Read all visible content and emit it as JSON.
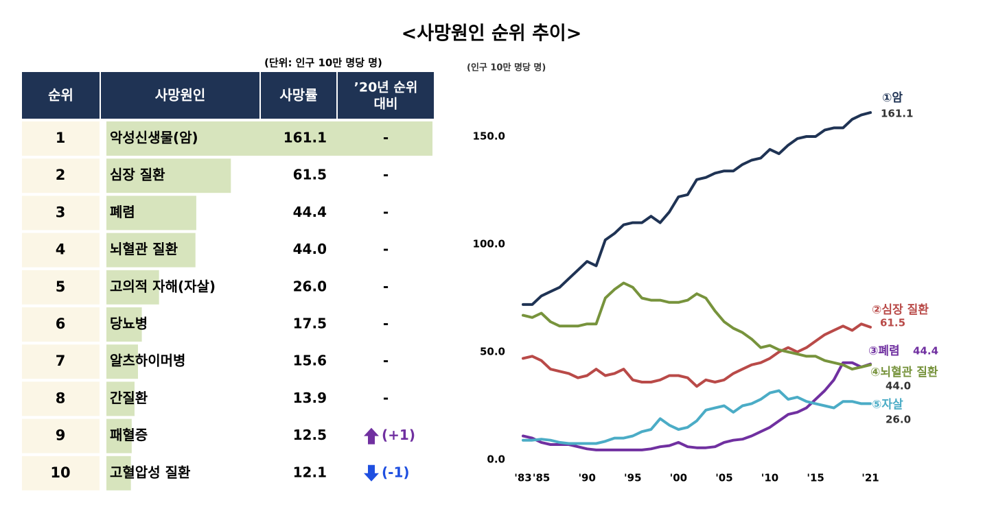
{
  "title": "<사망원인 순위 추이>",
  "table": {
    "unit": "(단위: 인구 10만 명당 명)",
    "columns": [
      "순위",
      "사망원인",
      "사망률",
      [
        "’20년 순위",
        "대비"
      ]
    ],
    "ranks": [
      "1",
      "2",
      "3",
      "4",
      "5",
      "6",
      "7",
      "8",
      "9",
      "10"
    ],
    "causes": [
      "악성신생물(암)",
      "심장 질환",
      "폐렴",
      "뇌혈관 질환",
      "고의적 자해(자살)",
      "당뇨병",
      "알츠하이머병",
      "간질환",
      "패혈증",
      "고혈압성 질환"
    ],
    "values": [
      161.1,
      61.5,
      44.4,
      44.0,
      26.0,
      17.5,
      15.6,
      13.9,
      12.5,
      12.1
    ],
    "value_labels": [
      "161.1",
      "61.5",
      "44.4",
      "44.0",
      "26.0",
      "17.5",
      "15.6",
      "13.9",
      "12.5",
      "12.1"
    ],
    "changes": [
      "-",
      "-",
      "-",
      "-",
      "-",
      "-",
      "-",
      "-",
      "(+1)",
      "(-1)"
    ],
    "bar_color": "#d7e4bd"
  },
  "chart_data": {
    "type": "line",
    "y_label": "(인구 10만 명당 명)",
    "x": [
      1983,
      1984,
      1985,
      1986,
      1987,
      1988,
      1989,
      1990,
      1991,
      1992,
      1993,
      1994,
      1995,
      1996,
      1997,
      1998,
      1999,
      2000,
      2001,
      2002,
      2003,
      2004,
      2005,
      2006,
      2007,
      2008,
      2009,
      2010,
      2011,
      2012,
      2013,
      2014,
      2015,
      2016,
      2017,
      2018,
      2019,
      2020,
      2021
    ],
    "xlim": [
      1983,
      2021
    ],
    "xticks": [
      {
        "value": 1983,
        "label": "'83"
      },
      {
        "value": 1985,
        "label": "'85"
      },
      {
        "value": 1990,
        "label": "'90"
      },
      {
        "value": 1995,
        "label": "'95"
      },
      {
        "value": 2000,
        "label": "'00"
      },
      {
        "value": 2005,
        "label": "'05"
      },
      {
        "value": 2010,
        "label": "'10"
      },
      {
        "value": 2015,
        "label": "'15"
      },
      {
        "value": 2021,
        "label": "'21"
      }
    ],
    "ylim": [
      0,
      175
    ],
    "yticks": [
      {
        "value": 0,
        "label": "0.0"
      },
      {
        "value": 50,
        "label": "50.0"
      },
      {
        "value": 100,
        "label": "100.0"
      },
      {
        "value": 150,
        "label": "150.0"
      }
    ],
    "series": [
      {
        "name": "①암",
        "color": "#1f3354",
        "end_label": "161.1",
        "values": [
          72,
          72,
          76,
          78,
          80,
          84,
          88,
          92,
          90,
          102,
          105,
          109,
          110,
          110,
          113,
          110,
          115,
          122,
          123,
          130,
          131,
          133,
          134,
          134,
          137,
          139,
          140,
          144,
          142,
          146,
          149,
          150,
          150,
          153,
          154,
          154,
          158,
          160,
          161.1
        ]
      },
      {
        "name": "②심장 질환",
        "color": "#b94a48",
        "end_label": "61.5",
        "values": [
          47,
          48,
          46,
          42,
          41,
          40,
          38,
          39,
          42,
          39,
          40,
          42,
          37,
          36,
          36,
          37,
          39,
          39,
          38,
          34,
          37,
          36,
          37,
          40,
          42,
          44,
          45,
          47,
          50,
          52,
          50,
          52,
          55,
          58,
          60,
          62,
          60,
          63,
          61.5
        ]
      },
      {
        "name": "③폐렴",
        "color": "#7030a0",
        "end_label": "44.4",
        "values": [
          11,
          10,
          8,
          7,
          7,
          7,
          6,
          5,
          4.5,
          4.5,
          4.5,
          4.5,
          4.5,
          4.5,
          5,
          6,
          6.5,
          8,
          6,
          5.5,
          5.5,
          6,
          8,
          9,
          9.5,
          11,
          13,
          15,
          18,
          21,
          22,
          24,
          28,
          32,
          37,
          45,
          45,
          43,
          44.4
        ]
      },
      {
        "name": "④뇌혈관 질환",
        "color": "#77933c",
        "end_label": "44.0",
        "values": [
          67,
          66,
          68,
          64,
          62,
          62,
          62,
          63,
          63,
          75,
          79,
          82,
          80,
          75,
          74,
          74,
          73,
          73,
          74,
          77,
          75,
          69,
          64,
          61,
          59,
          56,
          52,
          53,
          51,
          50,
          49,
          48,
          48,
          46,
          45,
          44,
          42,
          43,
          44.0
        ]
      },
      {
        "name": "⑤자살",
        "color": "#4bacc6",
        "end_label": "26.0",
        "values": [
          9,
          9,
          9.5,
          9,
          8,
          7.5,
          7.5,
          7.5,
          7.5,
          8.5,
          10,
          10,
          11,
          13,
          14,
          19,
          16,
          14,
          15,
          18,
          23,
          24,
          25,
          22,
          25,
          26,
          28,
          31,
          32,
          28,
          29,
          27,
          26,
          25,
          24,
          27,
          27,
          26,
          26.0
        ]
      }
    ]
  }
}
